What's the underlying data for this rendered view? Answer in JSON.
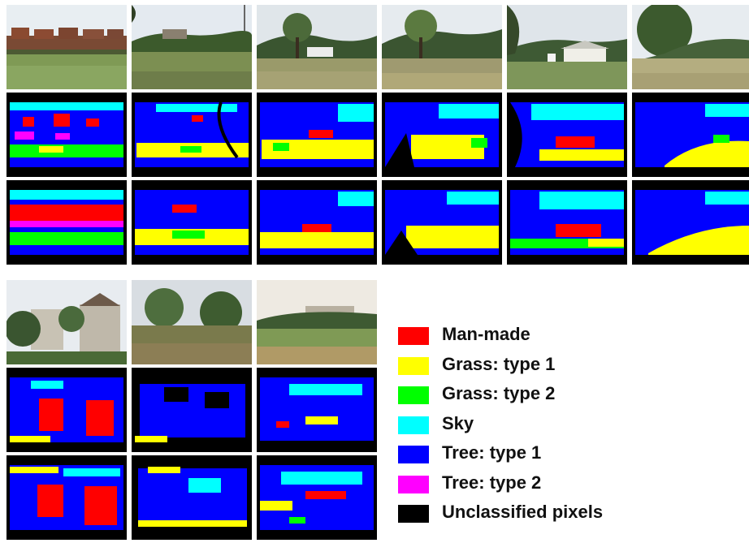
{
  "figure": {
    "colors": {
      "man_made": "#ff0000",
      "grass_type_1": "#ffff00",
      "grass_type_2": "#00ff00",
      "sky": "#00ffff",
      "tree_type_1": "#0000ff",
      "tree_type_2": "#ff00ff",
      "unclassified": "#000000"
    },
    "legend": [
      {
        "label": "Man-made",
        "color": "#ff0000"
      },
      {
        "label": "Grass: type 1",
        "color": "#ffff00"
      },
      {
        "label": "Grass: type 2",
        "color": "#00ff00"
      },
      {
        "label": "Sky",
        "color": "#00ffff"
      },
      {
        "label": "Tree: type 1",
        "color": "#0000ff"
      },
      {
        "label": "Tree: type 2",
        "color": "#ff00ff"
      },
      {
        "label": "Unclassified pixels",
        "color": "#000000"
      }
    ],
    "rows": [
      "photograph",
      "segmentation",
      "segmentation"
    ],
    "image_count_top": 6,
    "image_count_bottom": 3
  }
}
